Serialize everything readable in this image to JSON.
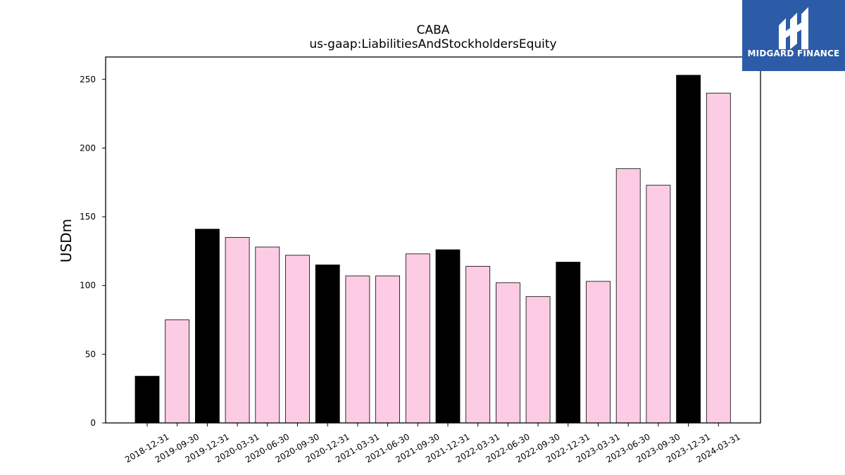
{
  "colors": {
    "annual_bar": "#000000",
    "quarterly_bar": "#fbcce4",
    "logo_bg": "#2c5ba8",
    "logo_fg": "#ffffff"
  },
  "logo": {
    "text": "MIDGARD FINANCE",
    "icon": "midgard-logo-icon"
  },
  "chart_data": {
    "type": "bar",
    "title": "CABA",
    "subtitle": "us-gaap:LiabilitiesAndStockholdersEquity",
    "xlabel": "",
    "ylabel": "USDm",
    "ylim": [
      0,
      265
    ],
    "yticks": [
      0,
      50,
      100,
      150,
      200,
      250
    ],
    "grid": false,
    "categories": [
      "2018-12-31",
      "2019-09-30",
      "2019-12-31",
      "2020-03-31",
      "2020-06-30",
      "2020-09-30",
      "2020-12-31",
      "2021-03-31",
      "2021-06-30",
      "2021-09-30",
      "2021-12-31",
      "2022-03-31",
      "2022-06-30",
      "2022-09-30",
      "2022-12-31",
      "2023-03-31",
      "2023-06-30",
      "2023-09-30",
      "2023-12-31",
      "2024-03-31"
    ],
    "values": [
      34,
      75,
      141,
      135,
      128,
      122,
      115,
      107,
      107,
      123,
      126,
      114,
      102,
      92,
      117,
      103,
      185,
      173,
      253,
      240
    ],
    "bar_kind": [
      "annual",
      "quarterly",
      "annual",
      "quarterly",
      "quarterly",
      "quarterly",
      "annual",
      "quarterly",
      "quarterly",
      "quarterly",
      "annual",
      "quarterly",
      "quarterly",
      "quarterly",
      "annual",
      "quarterly",
      "quarterly",
      "quarterly",
      "annual",
      "quarterly"
    ]
  }
}
